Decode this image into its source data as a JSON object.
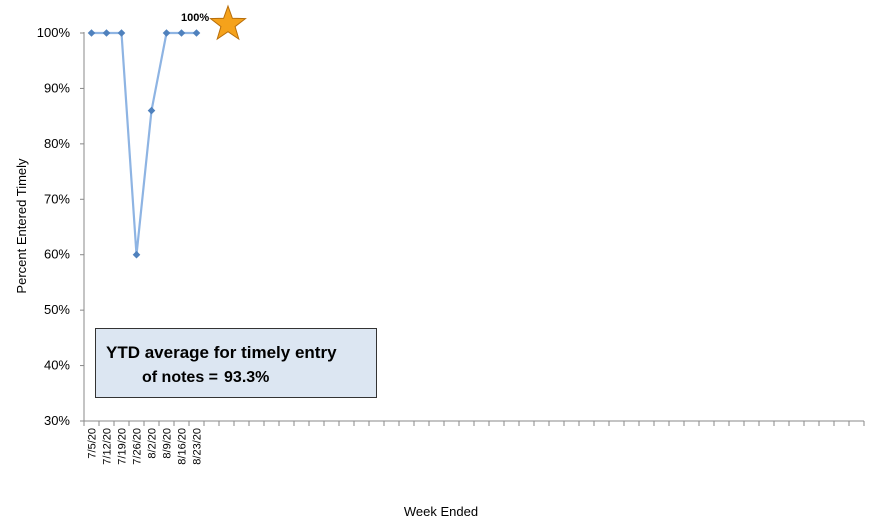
{
  "chart_data": {
    "type": "line",
    "xlabel": "Week Ended",
    "ylabel": "Percent Entered Timely",
    "ylim": [
      30,
      100
    ],
    "yticks": [
      "30%",
      "40%",
      "50%",
      "60%",
      "70%",
      "80%",
      "90%",
      "100%"
    ],
    "categories": [
      "7/5/20",
      "7/12/20",
      "7/19/20",
      "7/26/20",
      "8/2/20",
      "8/9/20",
      "8/16/20",
      "8/23/20"
    ],
    "total_category_slots": 52,
    "series": [
      {
        "values": [
          100,
          100,
          100,
          60,
          86,
          100,
          100,
          100
        ],
        "color": "#8eb4e3",
        "marker_color": "#4f81bd"
      }
    ],
    "grid": false,
    "legend": "none",
    "annotations": {
      "star_label": "100%",
      "star_icon": "star-icon",
      "star_color": "#f5a21b",
      "ytd_text_line1": "YTD average for timely entry",
      "ytd_text_line2": "of notes =",
      "ytd_value": "93.3%",
      "ytd_box_color": "#dce6f2"
    }
  }
}
